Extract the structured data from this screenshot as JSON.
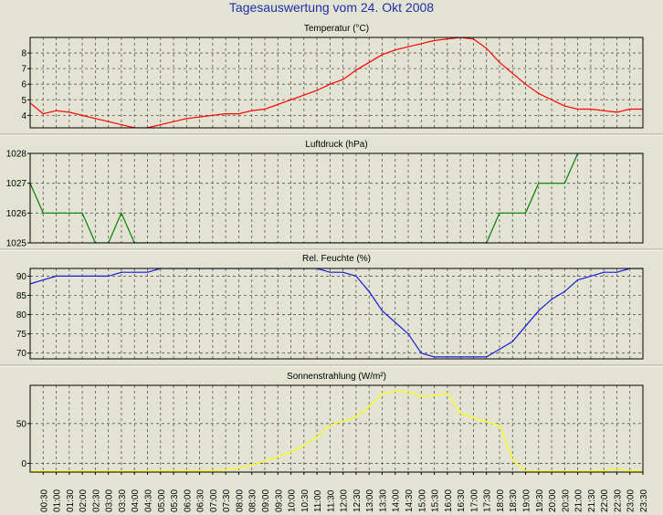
{
  "title": "Tagesauswertung vom 24. Okt 2008",
  "colors": {
    "background": "#e3e3d4",
    "title": "#1f2fa8",
    "temperature": "#ff0000",
    "pressure": "#008000",
    "humidity": "#1a1adc",
    "radiation": "#ffff00"
  },
  "x_ticks": [
    "00:30",
    "01:00",
    "01:30",
    "02:00",
    "02:30",
    "03:00",
    "03:30",
    "04:00",
    "04:30",
    "05:00",
    "05:30",
    "06:00",
    "06:30",
    "07:00",
    "07:30",
    "08:00",
    "08:30",
    "09:00",
    "09:30",
    "10:00",
    "10:30",
    "11:00",
    "11:30",
    "12:00",
    "12:30",
    "13:00",
    "13:30",
    "14:00",
    "14:30",
    "15:00",
    "15:30",
    "16:00",
    "16:30",
    "17:00",
    "17:30",
    "18:00",
    "18:30",
    "19:00",
    "19:30",
    "20:00",
    "20:30",
    "21:00",
    "21:30",
    "22:00",
    "22:30",
    "23:00",
    "23:30"
  ],
  "chart_data": [
    {
      "type": "line",
      "title": "Temperatur (°C)",
      "x": [
        0,
        0.5,
        1,
        1.5,
        2,
        2.5,
        3,
        3.5,
        4,
        4.5,
        5,
        5.5,
        6,
        6.5,
        7,
        7.5,
        8,
        8.5,
        9,
        9.5,
        10,
        10.5,
        11,
        11.5,
        12,
        12.5,
        13,
        13.5,
        14,
        14.5,
        15,
        15.5,
        16,
        16.5,
        17,
        17.5,
        18,
        18.5,
        19,
        19.5,
        20,
        20.5,
        21,
        21.5,
        22,
        22.5,
        23,
        23.5
      ],
      "series": [
        {
          "values": [
            4.8,
            4.1,
            4.3,
            4.2,
            4.0,
            3.8,
            3.6,
            3.4,
            3.2,
            3.2,
            3.4,
            3.6,
            3.8,
            3.9,
            4.0,
            4.1,
            4.1,
            4.3,
            4.4,
            4.7,
            5.0,
            5.3,
            5.6,
            6.0,
            6.3,
            6.9,
            7.4,
            7.9,
            8.2,
            8.4,
            8.6,
            8.8,
            8.9,
            9.0,
            8.9,
            8.3,
            7.4,
            6.7,
            6.0,
            5.4,
            5.0,
            4.6,
            4.4,
            4.4,
            4.3,
            4.2,
            4.4,
            4.4
          ]
        }
      ],
      "yticks": [
        4,
        5,
        6,
        7,
        8
      ],
      "ylim": [
        3.2,
        9.0
      ]
    },
    {
      "type": "line",
      "title": "Luftdruck (hPa)",
      "x": [
        0,
        0.5,
        1,
        1.5,
        2,
        2.5,
        3,
        3.5,
        4,
        4.5,
        5,
        5.5,
        6,
        6.5,
        7,
        7.5,
        8,
        8.5,
        9,
        9.5,
        10,
        10.5,
        11,
        11.5,
        12,
        12.5,
        13,
        13.5,
        14,
        14.5,
        15,
        15.5,
        16,
        16.5,
        17,
        17.5,
        18,
        18.5,
        19,
        19.5,
        20,
        20.5,
        21,
        21.5,
        22,
        22.5,
        23,
        23.5
      ],
      "series": [
        {
          "values": [
            1027,
            1026,
            1026,
            1026,
            1026,
            1025,
            1025,
            1026,
            1025,
            1025,
            1025,
            1025,
            1025,
            1025,
            1025,
            1025,
            1025,
            1025,
            1025,
            1025,
            1025,
            1025,
            1025,
            1025,
            1025,
            1025,
            1025,
            1025,
            1025,
            1025,
            1025,
            1025,
            1025,
            1025,
            1025,
            1025,
            1026,
            1026,
            1026,
            1027,
            1027,
            1027,
            1028,
            1028,
            1028,
            1028,
            1028,
            1028
          ]
        }
      ],
      "yticks": [
        1025,
        1026,
        1027,
        1028
      ],
      "ylim": [
        1025,
        1028
      ]
    },
    {
      "type": "line",
      "title": "Rel. Feuchte (%)",
      "x": [
        0,
        0.5,
        1,
        1.5,
        2,
        2.5,
        3,
        3.5,
        4,
        4.5,
        5,
        5.5,
        6,
        6.5,
        7,
        7.5,
        8,
        8.5,
        9,
        9.5,
        10,
        10.5,
        11,
        11.5,
        12,
        12.5,
        13,
        13.5,
        14,
        14.5,
        15,
        15.5,
        16,
        16.5,
        17,
        17.5,
        18,
        18.5,
        19,
        19.5,
        20,
        20.5,
        21,
        21.5,
        22,
        22.5,
        23,
        23.5
      ],
      "series": [
        {
          "values": [
            88,
            89,
            90,
            90,
            90,
            90,
            90,
            91,
            91,
            91,
            92,
            92,
            92,
            92,
            92,
            92,
            92,
            92,
            92,
            92,
            92,
            92,
            92,
            91,
            91,
            90,
            86,
            81,
            78,
            75,
            70,
            69,
            69,
            69,
            69,
            69,
            71,
            73,
            77,
            81,
            84,
            86,
            89,
            90,
            91,
            91,
            92,
            92
          ]
        }
      ],
      "yticks": [
        70,
        75,
        80,
        85,
        90
      ],
      "ylim": [
        68.5,
        92
      ]
    },
    {
      "type": "line",
      "title": "Sonnenstrahlung (W/m²)",
      "x": [
        0,
        0.5,
        1,
        1.5,
        2,
        2.5,
        3,
        3.5,
        4,
        4.5,
        5,
        5.5,
        6,
        6.5,
        7,
        7.5,
        8,
        8.5,
        9,
        9.5,
        10,
        10.5,
        11,
        11.5,
        12,
        12.5,
        13,
        13.5,
        14,
        14.5,
        15,
        15.5,
        16,
        16.5,
        17,
        17.5,
        18,
        18.5,
        19,
        19.5,
        20,
        20.5,
        21,
        21.5,
        22,
        22.5,
        23,
        23.5
      ],
      "series": [
        {
          "values": [
            -10,
            -10,
            -10,
            -10,
            -10,
            -10,
            -10,
            -10,
            -10,
            -10,
            -9,
            -9,
            -9,
            -9,
            -9,
            -8,
            -6,
            -2,
            3,
            8,
            14,
            22,
            33,
            48,
            53,
            58,
            71,
            88,
            90,
            90,
            84,
            85,
            88,
            63,
            57,
            52,
            48,
            5,
            -10,
            -10,
            -10,
            -10,
            -10,
            -10,
            -9,
            -7,
            -10,
            -10
          ]
        }
      ],
      "yticks": [
        0,
        50
      ],
      "ylim": [
        -11,
        98
      ]
    }
  ]
}
